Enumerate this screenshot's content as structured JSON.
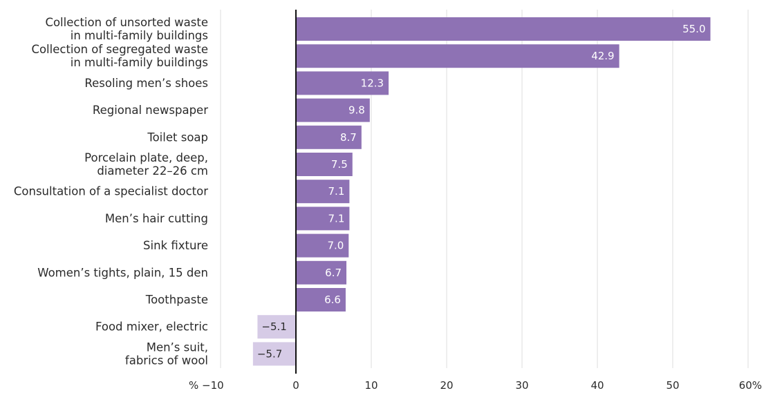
{
  "chart_data": {
    "type": "bar",
    "orientation": "horizontal",
    "categories": [
      [
        "Collection of unsorted waste",
        "in multi-family buildings"
      ],
      [
        "Collection of segregated waste",
        "in multi-family buildings"
      ],
      [
        "Resoling men’s shoes"
      ],
      [
        "Regional newspaper"
      ],
      [
        "Toilet soap"
      ],
      [
        "Porcelain plate, deep,",
        "diameter 22–26 cm"
      ],
      [
        "Consultation of a specialist doctor"
      ],
      [
        "Men’s hair cutting"
      ],
      [
        "Sink fixture"
      ],
      [
        "Women’s tights, plain, 15 den"
      ],
      [
        "Toothpaste"
      ],
      [
        "Food mixer, electric"
      ],
      [
        "Men’s suit,",
        "fabrics of wool"
      ]
    ],
    "values": [
      55.0,
      42.9,
      12.3,
      9.8,
      8.7,
      7.5,
      7.1,
      7.1,
      7.0,
      6.7,
      6.6,
      -5.1,
      -5.7
    ],
    "value_labels": [
      "55.0",
      "42.9",
      "12.3",
      "9.8",
      "8.7",
      "7.5",
      "7.1",
      "7.1",
      "7.0",
      "6.7",
      "6.6",
      "−5.1",
      "−5.7"
    ],
    "xlim": [
      -10,
      60
    ],
    "x_ticks": [
      -10,
      0,
      10,
      20,
      30,
      40,
      50,
      60
    ],
    "x_tick_labels": [
      "% −10",
      "0",
      "10",
      "20",
      "30",
      "40",
      "50",
      "60%"
    ],
    "grid": "vertical",
    "colors": {
      "positive": "#8e72b4",
      "negative": "#d6cbe6",
      "positive_label": "#ffffff",
      "negative_label": "#2b2b2b",
      "zero_line": "#111111",
      "grid": "#dddddd"
    }
  }
}
